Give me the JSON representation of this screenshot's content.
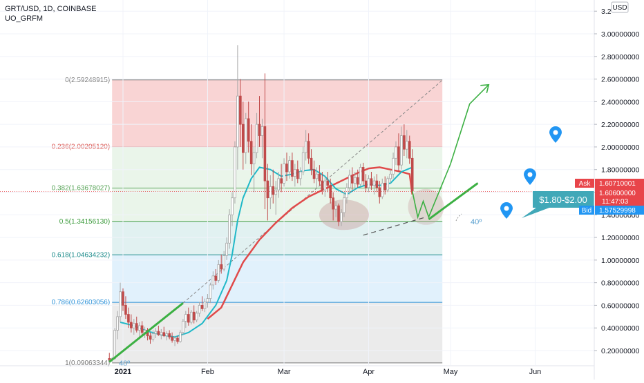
{
  "header": {
    "symbol_line": "GRT/USD, 1D, COINBASE",
    "indicator": "UO_GRFM"
  },
  "currency_badge": "USD",
  "colors": {
    "fib_0": "#f8cdcd",
    "fib_0236": "#e6f3e6",
    "fib_0382": "#e6f3e6",
    "fib_05": "#dcefef",
    "fib_0618": "#dceefb",
    "fib_0786": "#e8e8e8",
    "candle_up": "#a6a6a6",
    "candle_down": "#c04a4a",
    "ma_fast": "#20b8c8",
    "ma_slow": "#e04a4a",
    "arrow": "#3cb043",
    "tag": "#41a8b8",
    "ask": "#e8454a",
    "bid": "#2196f3",
    "pin": "#2196f3"
  },
  "annotations": {
    "target_tag": "$1.80-$2.00",
    "angle_label_right": "40º",
    "angle_label_left": "40º"
  },
  "price_tags": {
    "ask_label": "Ask",
    "ask_value": "1.60710001",
    "last_value": "1.60600000",
    "countdown": "11:47:03",
    "bid_label": "Bid",
    "bid_value": "1.57529998"
  },
  "chart_data": {
    "type": "candlestick",
    "x_range": [
      "2021-01-01",
      "2021-06-08"
    ],
    "y_range": [
      0.09,
      3.25
    ],
    "y_axis_ticks": [
      {
        "value": 0.2,
        "label": "0.20000000"
      },
      {
        "value": 0.4,
        "label": "0.40000000"
      },
      {
        "value": 0.6,
        "label": "0.60000000"
      },
      {
        "value": 0.8,
        "label": "0.80000000"
      },
      {
        "value": 1.0,
        "label": "1.00000000"
      },
      {
        "value": 1.2,
        "label": "1.20000000"
      },
      {
        "value": 1.4,
        "label": "1.40000000"
      },
      {
        "value": 1.6,
        "label": "1.60000000"
      },
      {
        "value": 1.8,
        "label": "1.80000000"
      },
      {
        "value": 2.0,
        "label": "2.00000000"
      },
      {
        "value": 2.2,
        "label": "2.20000000"
      },
      {
        "value": 2.4,
        "label": "2.40000000"
      },
      {
        "value": 2.6,
        "label": "2.60000000"
      },
      {
        "value": 2.8,
        "label": "2.80000000"
      },
      {
        "value": 3.0,
        "label": "3.00000000"
      },
      {
        "value": 3.2,
        "label": "3.2"
      }
    ],
    "x_axis_ticks": [
      {
        "date": "2021-01-01",
        "label": "2021"
      },
      {
        "date": "2021-02-01",
        "label": "Feb"
      },
      {
        "date": "2021-03-01",
        "label": "Mar"
      },
      {
        "date": "2021-04-01",
        "label": "Apr"
      },
      {
        "date": "2021-05-01",
        "label": "May"
      },
      {
        "date": "2021-06-01",
        "label": "Jun"
      }
    ],
    "fib_levels": [
      {
        "ratio": "0",
        "value": 2.59248915,
        "label": "0(2.59248915)",
        "color": "#777777"
      },
      {
        "ratio": "0.236",
        "value": 2.0020512,
        "label": "0.236(2.00205120)",
        "color": "#d9534f"
      },
      {
        "ratio": "0.382",
        "value": 1.63678027,
        "label": "0.382(1.63678027)",
        "color": "#5aa55a"
      },
      {
        "ratio": "0.5",
        "value": 1.3415613,
        "label": "0.5(1.34156130)",
        "color": "#3a9a3a"
      },
      {
        "ratio": "0.618",
        "value": 1.04634232,
        "label": "0.618(1.04634232)",
        "color": "#1a8a8a"
      },
      {
        "ratio": "0.786",
        "value": 0.62603056,
        "label": "0.786(0.62603056)",
        "color": "#2a90d8"
      },
      {
        "ratio": "1",
        "value": 0.09063344,
        "label": "1(0.09063344)",
        "color": "#777777"
      }
    ],
    "fib_date_range": [
      "2020-12-28",
      "2021-04-28"
    ],
    "candles": [
      [
        "2020-12-27",
        0.13,
        0.18,
        0.11,
        0.12
      ],
      [
        "2020-12-28",
        0.12,
        0.14,
        0.1,
        0.13
      ],
      [
        "2020-12-29",
        0.13,
        0.4,
        0.12,
        0.38
      ],
      [
        "2020-12-30",
        0.38,
        0.55,
        0.3,
        0.5
      ],
      [
        "2020-12-31",
        0.5,
        0.8,
        0.45,
        0.72
      ],
      [
        "2021-01-01",
        0.72,
        0.75,
        0.55,
        0.6
      ],
      [
        "2021-01-02",
        0.6,
        0.68,
        0.48,
        0.52
      ],
      [
        "2021-01-03",
        0.52,
        0.58,
        0.4,
        0.45
      ],
      [
        "2021-01-04",
        0.45,
        0.52,
        0.36,
        0.4
      ],
      [
        "2021-01-05",
        0.4,
        0.48,
        0.34,
        0.44
      ],
      [
        "2021-01-06",
        0.44,
        0.5,
        0.36,
        0.38
      ],
      [
        "2021-01-07",
        0.38,
        0.45,
        0.3,
        0.42
      ],
      [
        "2021-01-08",
        0.42,
        0.46,
        0.33,
        0.36
      ],
      [
        "2021-01-09",
        0.36,
        0.41,
        0.31,
        0.38
      ],
      [
        "2021-01-10",
        0.38,
        0.4,
        0.29,
        0.33
      ],
      [
        "2021-01-11",
        0.33,
        0.36,
        0.26,
        0.3
      ],
      [
        "2021-01-12",
        0.3,
        0.38,
        0.28,
        0.35
      ],
      [
        "2021-01-13",
        0.35,
        0.4,
        0.31,
        0.37
      ],
      [
        "2021-01-14",
        0.37,
        0.42,
        0.33,
        0.34
      ],
      [
        "2021-01-15",
        0.34,
        0.39,
        0.3,
        0.36
      ],
      [
        "2021-01-16",
        0.36,
        0.41,
        0.32,
        0.33
      ],
      [
        "2021-01-17",
        0.33,
        0.37,
        0.29,
        0.35
      ],
      [
        "2021-01-18",
        0.35,
        0.38,
        0.3,
        0.32
      ],
      [
        "2021-01-19",
        0.32,
        0.36,
        0.27,
        0.29
      ],
      [
        "2021-01-20",
        0.29,
        0.33,
        0.24,
        0.31
      ],
      [
        "2021-01-21",
        0.31,
        0.33,
        0.26,
        0.28
      ],
      [
        "2021-01-22",
        0.28,
        0.38,
        0.27,
        0.36
      ],
      [
        "2021-01-23",
        0.36,
        0.48,
        0.34,
        0.46
      ],
      [
        "2021-01-24",
        0.46,
        0.55,
        0.4,
        0.52
      ],
      [
        "2021-01-25",
        0.52,
        0.58,
        0.42,
        0.45
      ],
      [
        "2021-01-26",
        0.45,
        0.56,
        0.43,
        0.54
      ],
      [
        "2021-01-27",
        0.54,
        0.6,
        0.44,
        0.47
      ],
      [
        "2021-01-28",
        0.47,
        0.55,
        0.45,
        0.53
      ],
      [
        "2021-01-29",
        0.53,
        0.63,
        0.5,
        0.6
      ],
      [
        "2021-01-30",
        0.6,
        0.68,
        0.55,
        0.57
      ],
      [
        "2021-01-31",
        0.57,
        0.66,
        0.54,
        0.63
      ],
      [
        "2021-02-01",
        0.63,
        0.7,
        0.58,
        0.66
      ],
      [
        "2021-02-02",
        0.66,
        0.8,
        0.62,
        0.78
      ],
      [
        "2021-02-03",
        0.78,
        0.9,
        0.74,
        0.86
      ],
      [
        "2021-02-04",
        0.86,
        0.92,
        0.78,
        0.82
      ],
      [
        "2021-02-05",
        0.82,
        1.0,
        0.8,
        0.96
      ],
      [
        "2021-02-06",
        0.96,
        1.05,
        0.88,
        0.92
      ],
      [
        "2021-02-07",
        0.92,
        1.08,
        0.9,
        1.04
      ],
      [
        "2021-02-08",
        1.04,
        1.2,
        1.0,
        1.15
      ],
      [
        "2021-02-09",
        1.15,
        1.45,
        1.1,
        1.4
      ],
      [
        "2021-02-10",
        1.4,
        1.6,
        1.3,
        1.55
      ],
      [
        "2021-02-11",
        1.55,
        2.05,
        1.5,
        2.0
      ],
      [
        "2021-02-12",
        2.0,
        2.9,
        1.8,
        2.45
      ],
      [
        "2021-02-13",
        2.45,
        2.6,
        2.0,
        2.2
      ],
      [
        "2021-02-14",
        2.2,
        2.4,
        1.8,
        1.95
      ],
      [
        "2021-02-15",
        1.95,
        2.3,
        1.85,
        2.25
      ],
      [
        "2021-02-16",
        2.25,
        2.4,
        1.95,
        2.05
      ],
      [
        "2021-02-17",
        2.05,
        2.2,
        1.75,
        1.85
      ],
      [
        "2021-02-18",
        1.85,
        2.0,
        1.6,
        1.95
      ],
      [
        "2021-02-19",
        1.95,
        2.3,
        1.9,
        2.2
      ],
      [
        "2021-02-20",
        2.2,
        2.45,
        2.0,
        2.1
      ],
      [
        "2021-02-21",
        2.1,
        2.25,
        1.9,
        2.18
      ],
      [
        "2021-02-22",
        2.18,
        2.65,
        1.45,
        1.7
      ],
      [
        "2021-02-23",
        1.7,
        1.85,
        1.35,
        1.55
      ],
      [
        "2021-02-24",
        1.55,
        1.75,
        1.45,
        1.65
      ],
      [
        "2021-02-25",
        1.65,
        1.8,
        1.5,
        1.58
      ],
      [
        "2021-02-26",
        1.58,
        1.7,
        1.4,
        1.62
      ],
      [
        "2021-02-27",
        1.62,
        1.78,
        1.55,
        1.72
      ],
      [
        "2021-02-28",
        1.72,
        1.85,
        1.6,
        1.68
      ],
      [
        "2021-03-01",
        1.68,
        1.9,
        1.65,
        1.85
      ],
      [
        "2021-03-02",
        1.85,
        1.95,
        1.7,
        1.78
      ],
      [
        "2021-03-03",
        1.78,
        1.92,
        1.72,
        1.88
      ],
      [
        "2021-03-04",
        1.88,
        1.95,
        1.7,
        1.74
      ],
      [
        "2021-03-05",
        1.74,
        1.85,
        1.65,
        1.8
      ],
      [
        "2021-03-06",
        1.8,
        1.88,
        1.68,
        1.72
      ],
      [
        "2021-03-07",
        1.72,
        1.82,
        1.66,
        1.78
      ],
      [
        "2021-03-08",
        1.78,
        2.0,
        1.75,
        1.95
      ],
      [
        "2021-03-09",
        1.95,
        2.15,
        1.88,
        2.05
      ],
      [
        "2021-03-10",
        2.05,
        2.12,
        1.85,
        1.9
      ],
      [
        "2021-03-11",
        1.9,
        1.98,
        1.75,
        1.8
      ],
      [
        "2021-03-12",
        1.8,
        1.88,
        1.68,
        1.72
      ],
      [
        "2021-03-13",
        1.72,
        1.82,
        1.64,
        1.76
      ],
      [
        "2021-03-14",
        1.76,
        1.84,
        1.66,
        1.7
      ],
      [
        "2021-03-15",
        1.7,
        1.78,
        1.58,
        1.62
      ],
      [
        "2021-03-16",
        1.62,
        1.74,
        1.56,
        1.7
      ],
      [
        "2021-03-17",
        1.7,
        1.78,
        1.6,
        1.66
      ],
      [
        "2021-03-18",
        1.66,
        1.72,
        1.5,
        1.55
      ],
      [
        "2021-03-19",
        1.55,
        1.6,
        1.35,
        1.45
      ],
      [
        "2021-03-20",
        1.45,
        1.52,
        1.38,
        1.48
      ],
      [
        "2021-03-21",
        1.48,
        1.5,
        1.3,
        1.34
      ],
      [
        "2021-03-22",
        1.34,
        1.45,
        1.3,
        1.42
      ],
      [
        "2021-03-23",
        1.42,
        1.6,
        1.38,
        1.55
      ],
      [
        "2021-03-24",
        1.55,
        1.68,
        1.5,
        1.64
      ],
      [
        "2021-03-25",
        1.64,
        1.8,
        1.58,
        1.75
      ],
      [
        "2021-03-26",
        1.75,
        1.82,
        1.62,
        1.68
      ],
      [
        "2021-03-27",
        1.68,
        1.78,
        1.62,
        1.73
      ],
      [
        "2021-03-28",
        1.73,
        1.8,
        1.64,
        1.67
      ],
      [
        "2021-03-29",
        1.67,
        1.85,
        1.65,
        1.82
      ],
      [
        "2021-03-30",
        1.82,
        1.86,
        1.66,
        1.7
      ],
      [
        "2021-03-31",
        1.7,
        1.76,
        1.6,
        1.64
      ],
      [
        "2021-04-01",
        1.64,
        1.75,
        1.6,
        1.72
      ],
      [
        "2021-04-02",
        1.72,
        1.78,
        1.62,
        1.66
      ],
      [
        "2021-04-03",
        1.66,
        1.74,
        1.58,
        1.7
      ],
      [
        "2021-04-04",
        1.7,
        1.76,
        1.6,
        1.64
      ],
      [
        "2021-04-05",
        1.64,
        1.7,
        1.5,
        1.56
      ],
      [
        "2021-04-06",
        1.56,
        1.72,
        1.54,
        1.68
      ],
      [
        "2021-04-07",
        1.68,
        1.74,
        1.58,
        1.62
      ],
      [
        "2021-04-08",
        1.62,
        1.74,
        1.6,
        1.72
      ],
      [
        "2021-04-09",
        1.72,
        1.8,
        1.68,
        1.76
      ],
      [
        "2021-04-10",
        1.76,
        1.95,
        1.72,
        1.9
      ],
      [
        "2021-04-11",
        1.9,
        2.05,
        1.84,
        2.0
      ],
      [
        "2021-04-12",
        2.0,
        2.12,
        1.78,
        1.84
      ],
      [
        "2021-04-13",
        1.84,
        2.18,
        1.8,
        2.1
      ],
      [
        "2021-04-14",
        2.1,
        2.2,
        1.92,
        1.98
      ],
      [
        "2021-04-15",
        1.98,
        2.15,
        1.9,
        2.05
      ],
      [
        "2021-04-16",
        2.05,
        2.1,
        1.85,
        1.9
      ],
      [
        "2021-04-17",
        1.9,
        1.98,
        1.6,
        1.61
      ]
    ],
    "ma_fast": [
      [
        "2020-12-31",
        0.45
      ],
      [
        "2021-01-05",
        0.42
      ],
      [
        "2021-01-10",
        0.37
      ],
      [
        "2021-01-15",
        0.34
      ],
      [
        "2021-01-20",
        0.32
      ],
      [
        "2021-01-25",
        0.36
      ],
      [
        "2021-01-30",
        0.44
      ],
      [
        "2021-02-04",
        0.6
      ],
      [
        "2021-02-08",
        0.82
      ],
      [
        "2021-02-10",
        1.05
      ],
      [
        "2021-02-12",
        1.35
      ],
      [
        "2021-02-14",
        1.55
      ],
      [
        "2021-02-17",
        1.72
      ],
      [
        "2021-02-20",
        1.82
      ],
      [
        "2021-02-24",
        1.8
      ],
      [
        "2021-02-28",
        1.74
      ],
      [
        "2021-03-04",
        1.76
      ],
      [
        "2021-03-08",
        1.79
      ],
      [
        "2021-03-12",
        1.8
      ],
      [
        "2021-03-16",
        1.74
      ],
      [
        "2021-03-20",
        1.63
      ],
      [
        "2021-03-24",
        1.58
      ],
      [
        "2021-03-28",
        1.64
      ],
      [
        "2021-04-01",
        1.67
      ],
      [
        "2021-04-05",
        1.66
      ],
      [
        "2021-04-09",
        1.68
      ],
      [
        "2021-04-13",
        1.78
      ],
      [
        "2021-04-17",
        1.82
      ]
    ],
    "ma_slow": [
      [
        "2021-02-01",
        0.48
      ],
      [
        "2021-02-06",
        0.58
      ],
      [
        "2021-02-10",
        0.78
      ],
      [
        "2021-02-14",
        0.98
      ],
      [
        "2021-02-20",
        1.18
      ],
      [
        "2021-02-26",
        1.33
      ],
      [
        "2021-03-04",
        1.46
      ],
      [
        "2021-03-10",
        1.56
      ],
      [
        "2021-03-16",
        1.63
      ],
      [
        "2021-03-22",
        1.7
      ],
      [
        "2021-03-28",
        1.77
      ],
      [
        "2021-04-01",
        1.81
      ],
      [
        "2021-04-05",
        1.82
      ],
      [
        "2021-04-09",
        1.8
      ],
      [
        "2021-04-13",
        1.78
      ],
      [
        "2021-04-16",
        1.76
      ],
      [
        "2021-04-17",
        1.58
      ]
    ],
    "projection_path": [
      [
        "2021-04-17",
        1.61
      ],
      [
        "2021-04-19",
        1.38
      ],
      [
        "2021-04-21",
        1.52
      ],
      [
        "2021-04-23",
        1.38
      ],
      [
        "2021-05-01",
        1.85
      ],
      [
        "2021-05-08",
        2.38
      ],
      [
        "2021-05-15",
        2.55
      ]
    ],
    "trendline_upper": [
      [
        "2021-04-23",
        1.36
      ],
      [
        "2021-05-11",
        1.68
      ]
    ],
    "trendline_lower": [
      [
        "2020-12-27",
        0.1
      ],
      [
        "2021-01-23",
        0.62
      ]
    ],
    "dashed_diagonal": [
      [
        "2021-01-23",
        0.62
      ],
      [
        "2021-04-28",
        2.59
      ]
    ],
    "dashed_support": [
      [
        "2021-03-30",
        1.22
      ],
      [
        "2021-04-22",
        1.38
      ]
    ],
    "current_price": 1.606
  }
}
